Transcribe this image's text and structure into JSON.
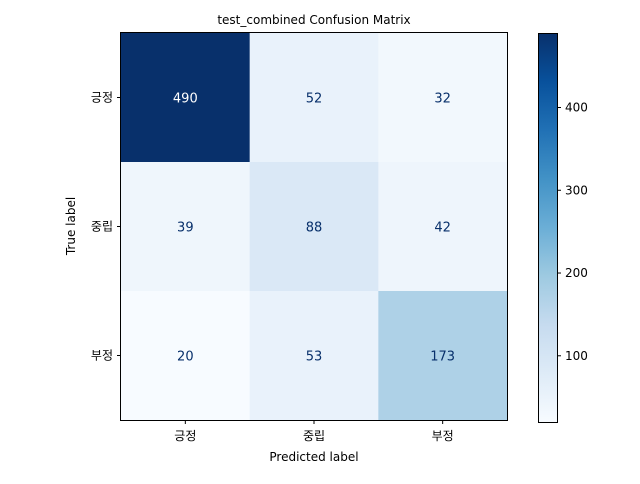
{
  "chart_data": {
    "type": "heatmap",
    "title": "test_combined Confusion Matrix",
    "xlabel": "Predicted label",
    "ylabel": "True label",
    "x_categories": [
      "긍정",
      "중립",
      "부정"
    ],
    "y_categories": [
      "긍정",
      "중립",
      "부정"
    ],
    "values": [
      [
        490,
        52,
        32
      ],
      [
        39,
        88,
        42
      ],
      [
        20,
        53,
        173
      ]
    ],
    "colormap": "Blues",
    "colorbar": {
      "range": [
        20,
        490
      ],
      "ticks": [
        100,
        200,
        300,
        400
      ]
    },
    "text_colors": {
      "dark_cell": "#ffffff",
      "light_cell": "#08306b"
    },
    "grid": false
  }
}
